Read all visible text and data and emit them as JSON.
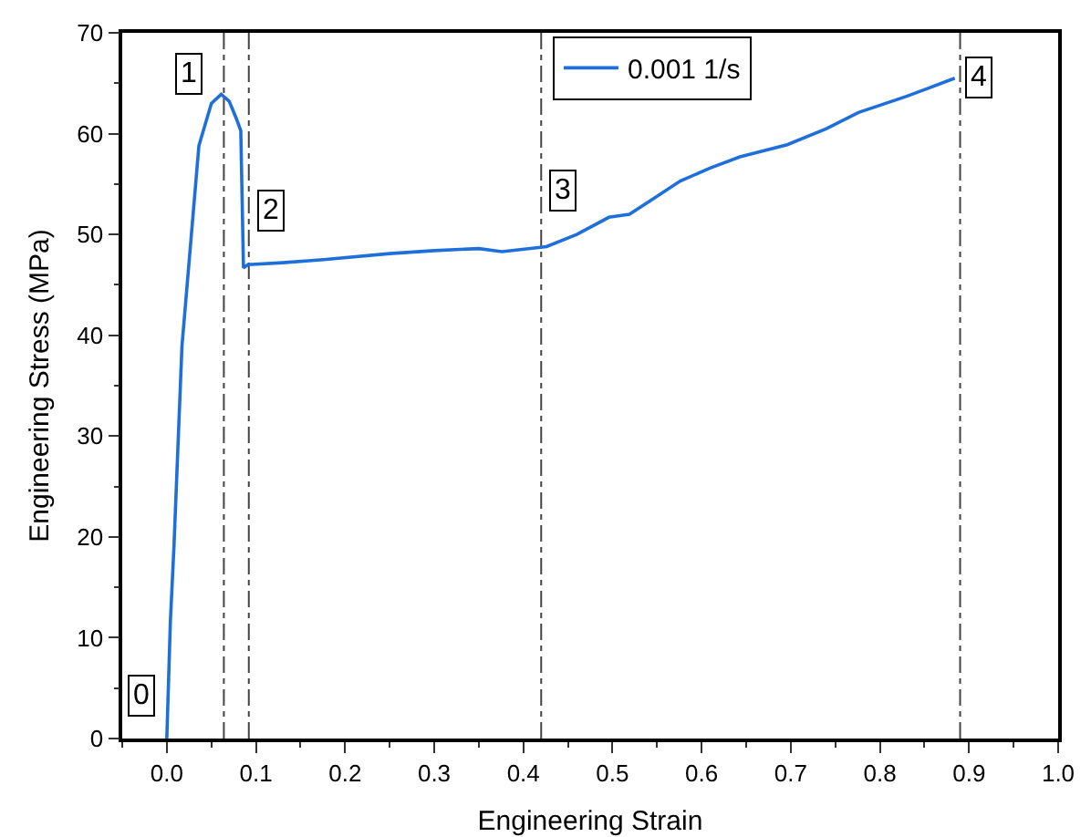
{
  "chart_data": {
    "type": "line",
    "xlabel": "Engineering Strain",
    "ylabel": "Engineering Stress (MPa)",
    "xlim": [
      -0.05,
      1.0
    ],
    "xticks": [
      {
        "value": 0,
        "label": "0.0"
      },
      0.1,
      0.2,
      0.3,
      0.4,
      0.5,
      0.6,
      0.7,
      0.8,
      0.9,
      {
        "value": 1,
        "label": "1.0"
      }
    ],
    "ylim": [
      0,
      70
    ],
    "yticks": [
      0,
      10,
      20,
      30,
      40,
      50,
      60,
      70
    ],
    "grid": false,
    "legend": "top right",
    "marker": "none",
    "line_style": "solid",
    "series": [
      {
        "name": "0.001 1/s",
        "color": "#1f6fdb",
        "x": [
          0,
          0.004,
          0.008,
          0.017,
          0.036,
          0.05,
          0.061,
          0.07,
          0.078,
          0.083,
          0.086,
          0.091,
          0.13,
          0.176,
          0.25,
          0.3,
          0.35,
          0.376,
          0.426,
          0.46,
          0.496,
          0.519,
          0.545,
          0.576,
          0.61,
          0.643,
          0.696,
          0.74,
          0.776,
          0.83,
          0.884
        ],
        "values": [
          0,
          11.6,
          19,
          38.9,
          58.8,
          63,
          63.9,
          63.2,
          61.5,
          60.3,
          46.7,
          47,
          47.2,
          47.5,
          48.1,
          48.4,
          48.6,
          48.3,
          48.8,
          50,
          51.7,
          52,
          53.5,
          55.3,
          56.6,
          57.7,
          58.9,
          60.5,
          62.1,
          63.7,
          65.5
        ]
      }
    ],
    "ref_lines": [
      {
        "axis": "x",
        "value": 0.064,
        "color": "#444444",
        "line_style": "dashed"
      },
      {
        "axis": "x",
        "value": 0.092,
        "color": "#444444",
        "line_style": "dashed"
      },
      {
        "axis": "x",
        "value": 0.42,
        "color": "#444444",
        "line_style": "dashed"
      },
      {
        "axis": "x",
        "value": 0.89,
        "color": "#444444",
        "line_style": "dashed"
      }
    ],
    "annotations": [
      {
        "text": "0",
        "x": -0.028,
        "y": 4.2
      },
      {
        "text": "1",
        "x": 0.024,
        "y": 66
      },
      {
        "text": "2",
        "x": 0.116,
        "y": 52.3
      },
      {
        "text": "3",
        "x": 0.444,
        "y": 54.4
      },
      {
        "text": "4",
        "x": 0.91,
        "y": 65.5
      }
    ]
  }
}
